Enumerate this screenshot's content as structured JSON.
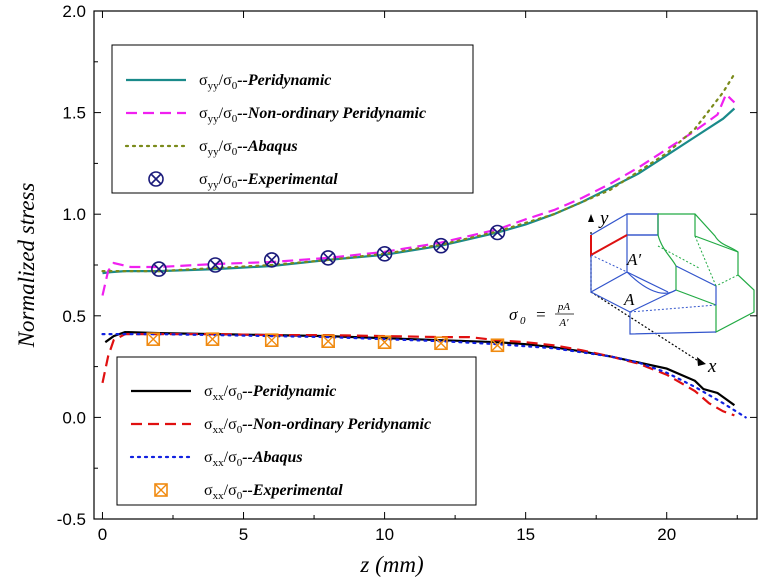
{
  "chart_data": {
    "type": "line",
    "xlabel": "z (mm)",
    "ylabel": "Normalized stress",
    "xlim": [
      -0.3,
      23.2
    ],
    "ylim": [
      -0.5,
      2.0
    ],
    "xticks": [
      0,
      5,
      10,
      15,
      20
    ],
    "yticks": [
      -0.5,
      0.0,
      0.5,
      1.0,
      1.5,
      2.0
    ],
    "xtick_labels": [
      "0",
      "5",
      "10",
      "15",
      "20"
    ],
    "ytick_labels": [
      "-0.5",
      "0.0",
      "0.5",
      "1.0",
      "1.5",
      "2.0"
    ],
    "grid": false,
    "series": [
      {
        "key": "yy_pd",
        "legend": "upper-left",
        "quantity": "σyy/σ0",
        "method": "--Peridynamic",
        "color": "#1a8a8a",
        "style": "solid",
        "x": [
          0,
          0.3,
          0.8,
          2,
          4,
          6,
          8,
          10,
          12,
          14,
          15,
          16,
          17,
          18,
          19,
          20,
          21,
          22,
          22.4
        ],
        "y": [
          0.71,
          0.715,
          0.72,
          0.72,
          0.73,
          0.745,
          0.775,
          0.8,
          0.845,
          0.91,
          0.95,
          1.0,
          1.06,
          1.13,
          1.2,
          1.29,
          1.38,
          1.47,
          1.52
        ]
      },
      {
        "key": "yy_nopd",
        "legend": "upper-left",
        "quantity": "σyy/σ0",
        "method": "--Non-ordinary Peridynamic",
        "color": "#f020f0",
        "style": "dashed",
        "x": [
          0,
          0.2,
          0.4,
          1,
          2,
          4,
          6,
          8,
          10,
          12,
          14,
          15,
          16,
          17,
          18,
          19,
          20,
          21,
          21.8,
          22.1,
          22.4
        ],
        "y": [
          0.6,
          0.72,
          0.76,
          0.74,
          0.74,
          0.755,
          0.765,
          0.785,
          0.815,
          0.86,
          0.925,
          0.975,
          1.02,
          1.08,
          1.15,
          1.23,
          1.32,
          1.41,
          1.49,
          1.59,
          1.55
        ]
      },
      {
        "key": "yy_abaqus",
        "legend": "upper-left",
        "quantity": "σyy/σ0",
        "method": "--Abaqus",
        "color": "#7a8a1a",
        "style": "dotted",
        "x": [
          0,
          0.5,
          2,
          4,
          6,
          8,
          10,
          12,
          14,
          16,
          18,
          20,
          21,
          22,
          22.4
        ],
        "y": [
          0.72,
          0.72,
          0.72,
          0.735,
          0.75,
          0.775,
          0.805,
          0.85,
          0.915,
          1.0,
          1.12,
          1.3,
          1.42,
          1.6,
          1.69
        ]
      },
      {
        "key": "yy_exp",
        "legend": "upper-left",
        "quantity": "σyy/σ0",
        "method": "--Experimental",
        "color": "#1a1a7a",
        "style": "marker-circle-x",
        "x": [
          2,
          4,
          6,
          8,
          10,
          12,
          14
        ],
        "y": [
          0.73,
          0.75,
          0.775,
          0.785,
          0.805,
          0.845,
          0.91
        ]
      },
      {
        "key": "xx_pd",
        "legend": "lower-left",
        "quantity": "σxx/σ0",
        "method": "--Peridynamic",
        "color": "#000000",
        "style": "solid",
        "x": [
          0.1,
          0.4,
          0.8,
          2,
          4,
          6,
          8,
          10,
          12,
          14,
          15,
          16,
          17,
          18,
          19,
          20,
          21,
          21.3,
          21.8,
          22.1,
          22.4
        ],
        "y": [
          0.37,
          0.4,
          0.42,
          0.415,
          0.41,
          0.405,
          0.4,
          0.39,
          0.38,
          0.37,
          0.36,
          0.345,
          0.325,
          0.3,
          0.27,
          0.24,
          0.18,
          0.14,
          0.12,
          0.09,
          0.06
        ]
      },
      {
        "key": "xx_nopd",
        "legend": "lower-left",
        "quantity": "σxx/σ0",
        "method": "--Non-ordinary Peridynamic",
        "color": "#e01010",
        "style": "dashed",
        "x": [
          0,
          0.2,
          0.4,
          0.8,
          2,
          4,
          6,
          8,
          10,
          12,
          13,
          14,
          15,
          16,
          17,
          18,
          19,
          20,
          21,
          21.5,
          22,
          22.4
        ],
        "y": [
          0.17,
          0.3,
          0.38,
          0.41,
          0.41,
          0.41,
          0.405,
          0.405,
          0.4,
          0.395,
          0.395,
          0.38,
          0.37,
          0.355,
          0.33,
          0.3,
          0.265,
          0.21,
          0.13,
          0.07,
          0.03,
          0.01
        ]
      },
      {
        "key": "xx_abaqus",
        "legend": "lower-left",
        "quantity": "σxx/σ0",
        "method": "--Abaqus",
        "color": "#1020e0",
        "style": "dotted",
        "x": [
          0,
          0.5,
          1,
          2,
          4,
          6,
          8,
          10,
          12,
          14,
          16,
          18,
          19,
          20,
          21,
          22,
          22.8
        ],
        "y": [
          0.41,
          0.41,
          0.41,
          0.41,
          0.405,
          0.4,
          0.395,
          0.385,
          0.375,
          0.36,
          0.34,
          0.3,
          0.27,
          0.22,
          0.15,
          0.07,
          0.0
        ]
      },
      {
        "key": "xx_exp",
        "legend": "lower-left",
        "quantity": "σxx/σ0",
        "method": "--Experimental",
        "color": "#f08a10",
        "style": "marker-square-x",
        "x": [
          1.8,
          3.9,
          6,
          8,
          10,
          12,
          14
        ],
        "y": [
          0.385,
          0.385,
          0.38,
          0.375,
          0.37,
          0.365,
          0.355
        ]
      }
    ],
    "annotation": {
      "formula_lhs": "σ",
      "formula_sub": "0",
      "formula_eq": "=",
      "formula_num": "pA",
      "formula_den": "A′",
      "label_A_prime": "A′",
      "label_A": "A",
      "axis_y": "y",
      "axis_x": "x"
    }
  }
}
